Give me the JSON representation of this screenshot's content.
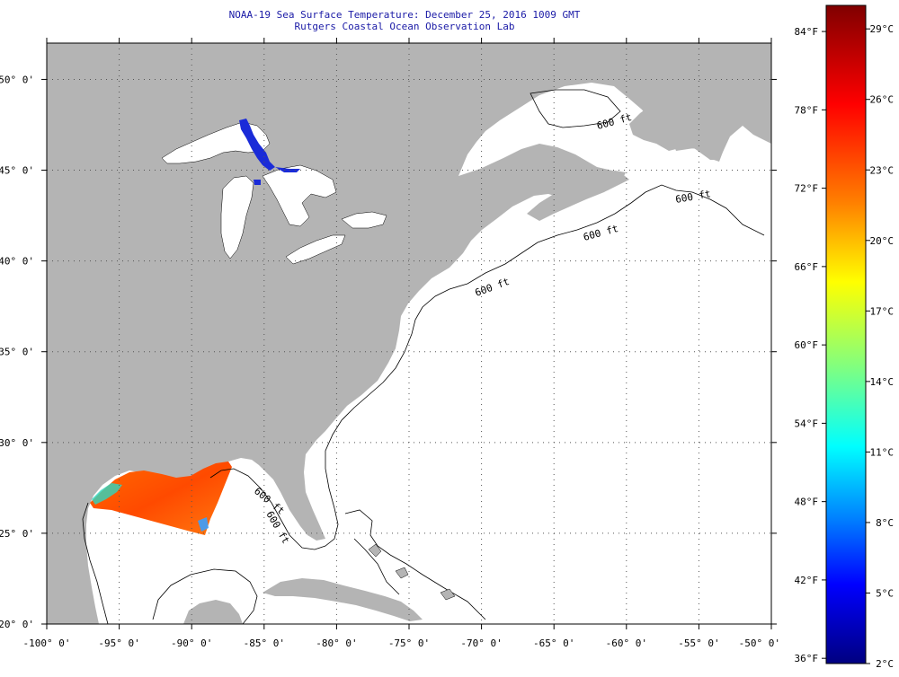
{
  "title": {
    "line1": "NOAA-19 Sea Surface Temperature:  December 25, 2016 1009 GMT",
    "line2": "Rutgers Coastal Ocean Observation Lab"
  },
  "map": {
    "lon_range": [
      -100,
      -50
    ],
    "lat_range": [
      20,
      52
    ],
    "lon_ticks": [
      {
        "value": -100,
        "label": "-100° 0'"
      },
      {
        "value": -95,
        "label": "-95° 0'"
      },
      {
        "value": -90,
        "label": "-90° 0'"
      },
      {
        "value": -85,
        "label": "-85° 0'"
      },
      {
        "value": -80,
        "label": "-80° 0'"
      },
      {
        "value": -75,
        "label": "-75° 0'"
      },
      {
        "value": -70,
        "label": "-70° 0'"
      },
      {
        "value": -65,
        "label": "-65° 0'"
      },
      {
        "value": -60,
        "label": "-60° 0'"
      },
      {
        "value": -55,
        "label": "-55° 0'"
      },
      {
        "value": -50,
        "label": "-50° 0'"
      }
    ],
    "lat_ticks": [
      {
        "value": 20,
        "label": "20° 0'"
      },
      {
        "value": 25,
        "label": "25° 0'"
      },
      {
        "value": 30,
        "label": "30° 0'"
      },
      {
        "value": 35,
        "label": "35° 0'"
      },
      {
        "value": 40,
        "label": "40° 0'"
      },
      {
        "value": 45,
        "label": "45° 0'"
      },
      {
        "value": 50,
        "label": "50° 0'"
      }
    ],
    "isobath_labels": [
      "600 ft",
      "600 ft",
      "600 ft",
      "600 ft",
      "600 ft",
      "600 ft"
    ],
    "colors": {
      "land": "#b4b4b4",
      "ocean": "#ffffff",
      "grid": "#555555",
      "isobath": "#000000"
    }
  },
  "colorbar": {
    "fahrenheit_labels": [
      "84°F",
      "78°F",
      "72°F",
      "66°F",
      "60°F",
      "54°F",
      "48°F",
      "42°F",
      "36°F"
    ],
    "celsius_labels": [
      "29°C",
      "26°C",
      "23°C",
      "20°C",
      "17°C",
      "14°C",
      "11°C",
      "8°C",
      "5°C",
      "2°C"
    ],
    "celsius_range": [
      2,
      30
    ],
    "gradient_stops": [
      "#800000",
      "#ff0000",
      "#ff8000",
      "#ffff00",
      "#80ff80",
      "#00ffff",
      "#0080ff",
      "#0000ff",
      "#000080"
    ]
  }
}
